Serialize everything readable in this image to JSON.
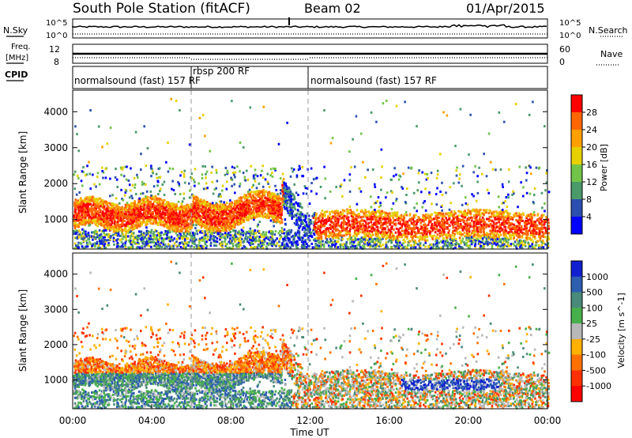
{
  "header": {
    "title": "South Pole Station (fitACF)",
    "beam": "Beam 02",
    "date": "01/Apr/2015"
  },
  "status_panels": {
    "nsky_label": "N.Sky",
    "nsearch_label": "N.Search",
    "freq_label_line1": "Freq.",
    "freq_label_line2": "[MHz]",
    "nave_label": "Nave",
    "cpid_label": "CPID",
    "noise_ticks": [
      "10^5",
      "10^0"
    ],
    "freq_ticks": [
      "12",
      "8"
    ],
    "nave_ticks": [
      "60",
      "0"
    ]
  },
  "cpid_segments": [
    {
      "label": "normalsound (fast) 157 RF",
      "start_hour": 0,
      "end_hour": 6
    },
    {
      "label": "rbsp 200 RF",
      "start_hour": 6,
      "end_hour": 12
    },
    {
      "label": "normalsound (fast) 157 RF",
      "start_hour": 12,
      "end_hour": 24
    }
  ],
  "chart_data": [
    {
      "type": "heatmap",
      "xlabel": "Time UT",
      "ylabel": "Slant Range [km]",
      "xlim": [
        0,
        24
      ],
      "ylim": [
        180,
        4600
      ],
      "y_ticks": [
        1000,
        2000,
        3000,
        4000
      ],
      "colorbar": {
        "label": "Power [dB]",
        "ticks": [
          "28",
          "24",
          "20",
          "16",
          "12",
          "8",
          "4"
        ],
        "colors": [
          "#ff0000",
          "#ff6600",
          "#ffa000",
          "#e6d000",
          "#72c448",
          "#4a9a6a",
          "#2a4fb0",
          "#0000ff"
        ]
      }
    },
    {
      "type": "heatmap",
      "xlabel": "Time UT",
      "ylabel": "Slant Range [km]",
      "xlim": [
        0,
        24
      ],
      "ylim": [
        180,
        4600
      ],
      "y_ticks": [
        1000,
        2000,
        3000,
        4000
      ],
      "colorbar": {
        "label": "Velocity [m s^-1]",
        "ticks": [
          "1000",
          "500",
          "100",
          "25",
          "-25",
          "-100",
          "-500",
          "-1000"
        ],
        "colors": [
          "#1020d0",
          "#2d5eb0",
          "#4a8a7a",
          "#48b04a",
          "#b8b8b8",
          "#ffb000",
          "#ff7000",
          "#ff3000",
          "#ff0000"
        ]
      }
    }
  ],
  "x_ticks": [
    "00:00",
    "04:00",
    "08:00",
    "12:00",
    "16:00",
    "20:00",
    "00:00"
  ]
}
